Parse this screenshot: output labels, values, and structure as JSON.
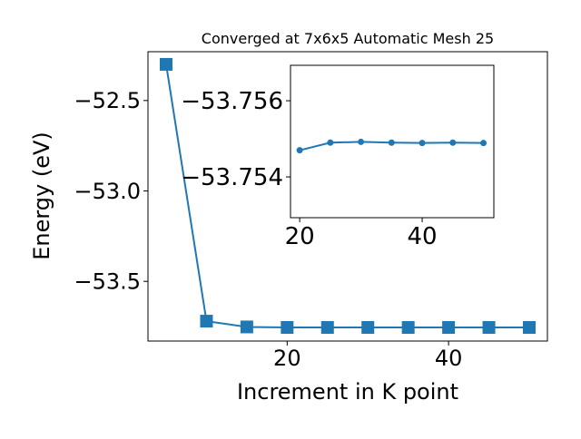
{
  "chart_data": [
    {
      "type": "line",
      "title": "Converged at 7x6x5 Automatic Mesh 25",
      "x_label": "Increment in K point",
      "y_label": "Energy (eV)",
      "x": [
        5,
        10,
        15,
        20,
        25,
        30,
        35,
        40,
        45,
        50
      ],
      "series": [
        {
          "color": "#1f77b4",
          "marker": "square",
          "values": [
            -52.3,
            -53.72,
            -53.752,
            -53.7547,
            -53.7549,
            -53.7548,
            -53.7549,
            -53.7549,
            -53.7549,
            -53.7549
          ]
        }
      ],
      "xlim": [
        2.75,
        52.25
      ],
      "ylim": [
        -53.83,
        -52.23
      ],
      "xticks": [
        20,
        40
      ],
      "yticks": [
        {
          "value": -52.5,
          "label": "−52.5"
        },
        {
          "value": -53.0,
          "label": "−53.0"
        },
        {
          "value": -53.5,
          "label": "−53.5"
        }
      ]
    },
    {
      "type": "line",
      "x": [
        20,
        25,
        30,
        35,
        40,
        45,
        50
      ],
      "series": [
        {
          "color": "#1f77b4",
          "marker": "circle",
          "values": [
            -53.7547,
            -53.7549,
            -53.75492,
            -53.7549,
            -53.75489,
            -53.7549,
            -53.75489
          ]
        }
      ],
      "xlim": [
        18.5,
        51.7
      ],
      "ylim": [
        -53.75293,
        -53.75693
      ],
      "xticks": [
        20,
        40
      ],
      "yticks": [
        {
          "value": -53.756,
          "label": "−53.756"
        },
        {
          "value": -53.754,
          "label": "−53.754"
        }
      ]
    }
  ]
}
